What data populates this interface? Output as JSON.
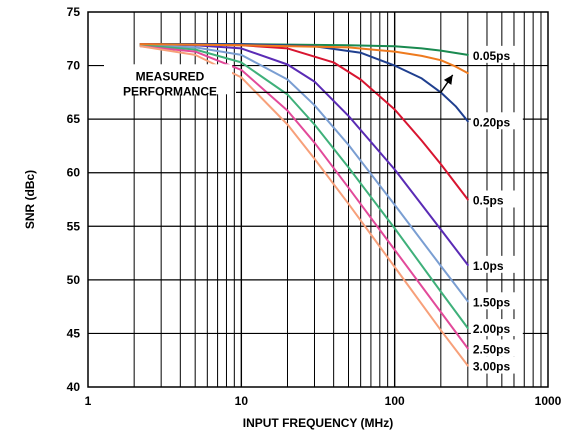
{
  "chart_data": {
    "type": "line",
    "xlabel": "INPUT FREQUENCY (MHz)",
    "ylabel": "SNR (dBc)",
    "x_scale": "log",
    "xlim": [
      1,
      1000
    ],
    "ylim": [
      40,
      75
    ],
    "x_ticks": [
      "1",
      "10",
      "100",
      "1000"
    ],
    "y_ticks": [
      "40",
      "45",
      "50",
      "55",
      "60",
      "65",
      "70",
      "75"
    ],
    "grid": true,
    "series": [
      {
        "name": "0.05ps",
        "color": "#1a8a50",
        "x": [
          2.2,
          10,
          50,
          100,
          150,
          200,
          300
        ],
        "y": [
          72,
          72,
          71.9,
          71.8,
          71.6,
          71.4,
          71.0
        ]
      },
      {
        "name": "0.20ps",
        "color": "#1f3f8f",
        "x": [
          2.2,
          10,
          30,
          60,
          100,
          150,
          200,
          250,
          300
        ],
        "y": [
          72,
          72,
          71.8,
          71.2,
          70.0,
          68.8,
          67.5,
          66.2,
          64.8
        ]
      },
      {
        "name": "0.5ps",
        "color": "#d81530",
        "x": [
          2.2,
          10,
          20,
          40,
          60,
          100,
          150,
          200,
          300
        ],
        "y": [
          72,
          71.9,
          71.6,
          70.3,
          68.7,
          65.9,
          63.0,
          60.8,
          57.5
        ]
      },
      {
        "name": "1.0ps",
        "color": "#5a2bb5",
        "x": [
          2.2,
          5,
          10,
          20,
          30,
          50,
          100,
          200,
          300
        ],
        "y": [
          72,
          71.9,
          71.6,
          70.1,
          68.5,
          65.3,
          60.3,
          54.7,
          51.4
        ]
      },
      {
        "name": "1.50ps",
        "color": "#7a9ed2",
        "x": [
          2.2,
          5,
          10,
          20,
          30,
          50,
          100,
          200,
          300
        ],
        "y": [
          71.9,
          71.7,
          71.0,
          68.7,
          66.3,
          62.6,
          57.0,
          51.3,
          48.0
        ]
      },
      {
        "name": "2.00ps",
        "color": "#3fb07a",
        "x": [
          2.2,
          5,
          10,
          20,
          30,
          50,
          100,
          200,
          300
        ],
        "y": [
          71.9,
          71.5,
          70.3,
          67.3,
          64.5,
          60.5,
          54.8,
          48.9,
          45.5
        ]
      },
      {
        "name": "2.50ps",
        "color": "#e24a9a",
        "x": [
          2.2,
          5,
          10,
          20,
          30,
          50,
          100,
          200,
          300
        ],
        "y": [
          71.8,
          71.3,
          69.6,
          65.8,
          62.8,
          58.6,
          52.8,
          47.0,
          43.6
        ]
      },
      {
        "name": "3.00ps",
        "color": "#f7a07a",
        "x": [
          2.2,
          5,
          10,
          20,
          30,
          50,
          100,
          200,
          300
        ],
        "y": [
          71.8,
          71.0,
          68.9,
          64.5,
          61.3,
          57.1,
          51.2,
          45.3,
          42.0
        ]
      },
      {
        "name": "",
        "color": "#ee7a1e",
        "x": [
          2.2,
          10,
          50,
          100,
          150,
          200,
          250,
          300
        ],
        "y": [
          72,
          71.9,
          71.7,
          71.3,
          70.9,
          70.5,
          69.9,
          69.3
        ]
      }
    ],
    "annotations": [
      {
        "text_lines": [
          "MEASURED",
          "PERFORMANCE"
        ],
        "pointer_to": {
          "x": 250,
          "y": 69.5
        }
      }
    ]
  }
}
